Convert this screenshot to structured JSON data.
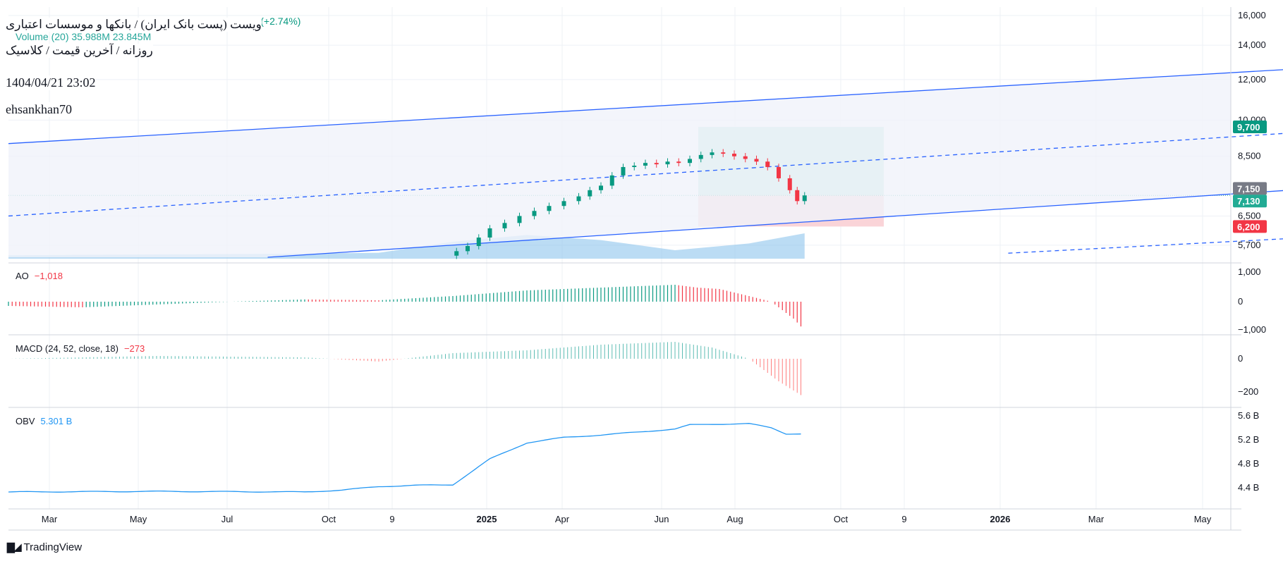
{
  "header": {
    "title": "ویست (پست بانک ایران) / بانکها و موسسات اعتباری",
    "subtitle": "روزانه / آخرین قیمت / کلاسیک",
    "datetime": "1404/04/21 23:02",
    "author": "ehsankhan70",
    "ghost_change": "190 (+2.74%)",
    "ghost_volume_label": "Volume (20)",
    "ghost_volume_values": "35.988M 23.845M"
  },
  "colors": {
    "up": "#089981",
    "down": "#f23645",
    "channel": "#2962ff",
    "volume_area": "#8ec4ec",
    "obv": "#2196f3",
    "grid": "#eef1f6",
    "target_zone": "#c4e8e2",
    "stop_zone": "#fad4d8",
    "axis_text": "#131722"
  },
  "brand": {
    "name": "TradingView",
    "logo_icon": "tradingview-logo-icon"
  },
  "price_axis": {
    "ticks": [
      "16,000",
      "14,000",
      "12,000",
      "10,000",
      "8,500",
      "6,500",
      "5,700"
    ],
    "badges": [
      {
        "text": "9,700",
        "color": "#089981"
      },
      {
        "text": "7,150",
        "color": "#787b86"
      },
      {
        "text": "7,130",
        "color": "#22ab94"
      },
      {
        "text": "6,200",
        "color": "#f23645"
      }
    ]
  },
  "time_axis": {
    "labels": [
      "Mar",
      "May",
      "Jul",
      "Oct",
      "9",
      "2025",
      "Apr",
      "Jun",
      "Aug",
      "Oct",
      "9",
      "2026",
      "Mar",
      "May"
    ],
    "bold": [
      "2025",
      "2026"
    ]
  },
  "indicators": {
    "ao": {
      "name": "AO",
      "value": "−1,018",
      "ticks": [
        "1,000",
        "0",
        "−1,000"
      ]
    },
    "macd": {
      "name": "MACD (24, 52, close, 18)",
      "value": "−273",
      "ticks": [
        "0",
        "−200"
      ]
    },
    "obv": {
      "name": "OBV",
      "value": "5.301 B",
      "ticks": [
        "5.6 B",
        "5.2 B",
        "4.8 B",
        "4.4 B"
      ]
    }
  },
  "chart_data": {
    "type": "candlestick",
    "title": "ویست (پست بانک ایران) / بانکها و موسسات اعتباری",
    "interval": "روزانه",
    "scale": "log",
    "last_price": 7130,
    "position": {
      "entry": 7130,
      "target": 9700,
      "stop": 6200
    },
    "price_range": [
      5400,
      16500
    ],
    "candles": [
      {
        "m": 6.05,
        "c": 5550
      },
      {
        "m": 6.2,
        "c": 5680
      },
      {
        "m": 6.35,
        "c": 5900
      },
      {
        "m": 6.5,
        "c": 6150
      },
      {
        "m": 6.7,
        "c": 6300
      },
      {
        "m": 6.9,
        "c": 6500
      },
      {
        "m": 7.1,
        "c": 6650
      },
      {
        "m": 7.3,
        "c": 6800
      },
      {
        "m": 7.5,
        "c": 6950
      },
      {
        "m": 7.7,
        "c": 7100
      },
      {
        "m": 7.85,
        "c": 7300
      },
      {
        "m": 8.0,
        "c": 7450
      },
      {
        "m": 8.15,
        "c": 7800
      },
      {
        "m": 8.3,
        "c": 8100
      },
      {
        "m": 8.45,
        "c": 8150
      },
      {
        "m": 8.6,
        "c": 8250
      },
      {
        "m": 8.75,
        "c": 8200
      },
      {
        "m": 8.9,
        "c": 8300
      },
      {
        "m": 9.05,
        "c": 8250
      },
      {
        "m": 9.2,
        "c": 8400
      },
      {
        "m": 9.35,
        "c": 8550
      },
      {
        "m": 9.5,
        "c": 8650
      },
      {
        "m": 9.65,
        "c": 8600
      },
      {
        "m": 9.8,
        "c": 8500
      },
      {
        "m": 9.95,
        "c": 8400
      },
      {
        "m": 10.1,
        "c": 8300
      },
      {
        "m": 10.25,
        "c": 8100
      },
      {
        "m": 10.4,
        "c": 7700
      },
      {
        "m": 10.55,
        "c": 7300
      },
      {
        "m": 10.65,
        "c": 6950
      },
      {
        "m": 10.75,
        "c": 7130
      }
    ],
    "channel": {
      "upper_solid": [
        [
          0,
          9000
        ],
        [
          24,
          14300
        ]
      ],
      "upper_dashed": [
        [
          0,
          6500
        ],
        [
          24,
          10900
        ]
      ],
      "lower_solid": [
        [
          3.5,
          5400
        ],
        [
          24,
          8450
        ]
      ],
      "lower_dashed": [
        [
          13.5,
          5500
        ],
        [
          24,
          6600
        ]
      ]
    },
    "volume_area": [
      [
        0,
        0.04
      ],
      [
        2,
        0.05
      ],
      [
        4,
        0.06
      ],
      [
        5,
        0.07
      ],
      [
        6,
        0.2
      ],
      [
        7,
        0.28
      ],
      [
        8,
        0.22
      ],
      [
        9,
        0.1
      ],
      [
        10,
        0.18
      ],
      [
        10.75,
        0.3
      ]
    ],
    "ao": [
      [
        0,
        -0.15
      ],
      [
        1,
        -0.2
      ],
      [
        2,
        -0.1
      ],
      [
        3,
        0
      ],
      [
        4,
        0.08
      ],
      [
        5,
        0.05
      ],
      [
        6,
        0.2
      ],
      [
        7,
        0.4
      ],
      [
        7.5,
        0.45
      ],
      [
        8,
        0.5
      ],
      [
        8.5,
        0.55
      ],
      [
        9,
        0.6
      ],
      [
        9.3,
        0.5
      ],
      [
        9.6,
        0.45
      ],
      [
        10,
        0.2
      ],
      [
        10.3,
        0
      ],
      [
        10.6,
        -0.6
      ],
      [
        10.75,
        -1.018
      ]
    ],
    "macd": [
      [
        0,
        0
      ],
      [
        2,
        0.1
      ],
      [
        4,
        0.05
      ],
      [
        5,
        -0.1
      ],
      [
        6,
        0.2
      ],
      [
        7,
        0.3
      ],
      [
        8,
        0.5
      ],
      [
        9,
        0.6
      ],
      [
        9.5,
        0.4
      ],
      [
        10,
        0
      ],
      [
        10.4,
        -0.8
      ],
      [
        10.75,
        -1.37
      ]
    ],
    "obv": [
      [
        0,
        4.33
      ],
      [
        2,
        4.34
      ],
      [
        4,
        4.33
      ],
      [
        4.5,
        4.36
      ],
      [
        5,
        4.42
      ],
      [
        5.5,
        4.44
      ],
      [
        6,
        4.45
      ],
      [
        6.5,
        4.88
      ],
      [
        7,
        5.15
      ],
      [
        7.5,
        5.24
      ],
      [
        8,
        5.28
      ],
      [
        8.5,
        5.33
      ],
      [
        9,
        5.38
      ],
      [
        9.2,
        5.45
      ],
      [
        9.5,
        5.46
      ],
      [
        10,
        5.47
      ],
      [
        10.3,
        5.4
      ],
      [
        10.5,
        5.3
      ],
      [
        10.75,
        5.301
      ]
    ]
  }
}
